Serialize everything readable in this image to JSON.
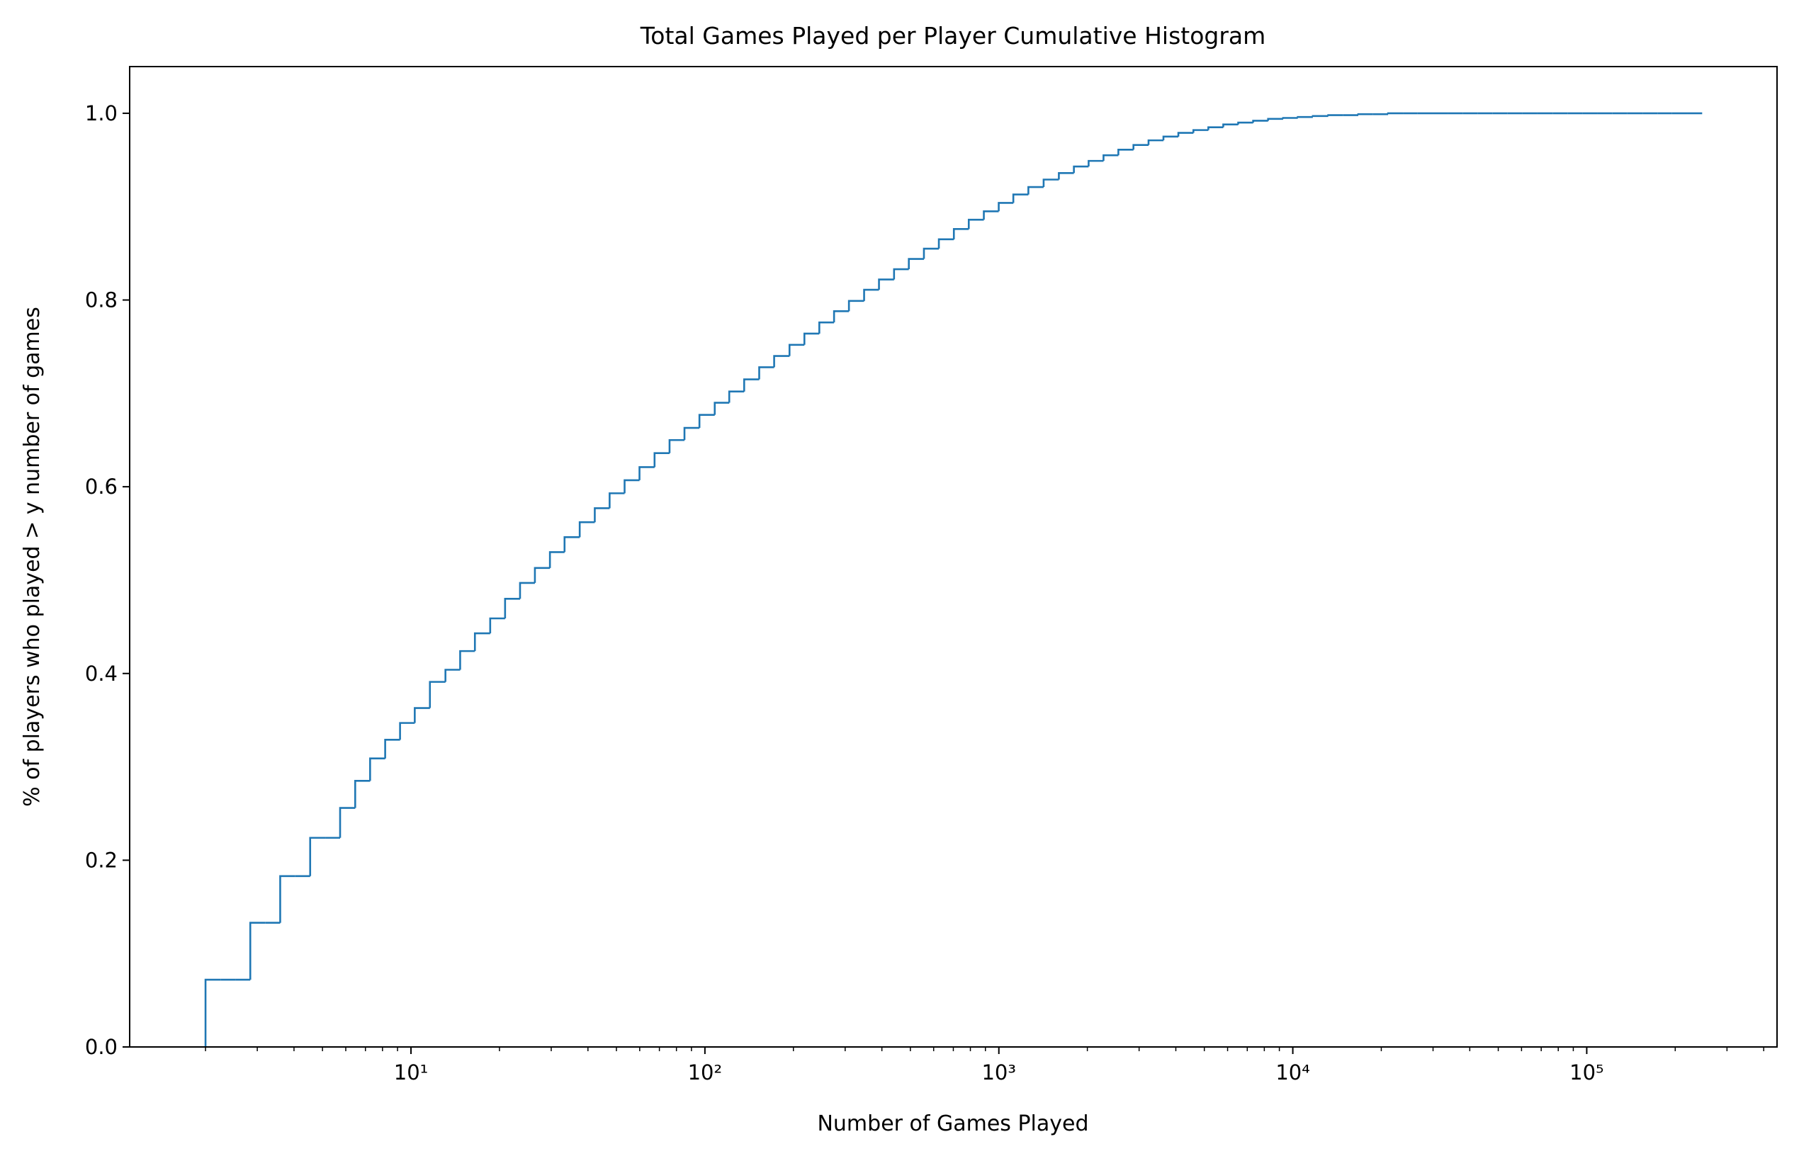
{
  "chart_data": {
    "type": "histogram",
    "title": "Total Games Played per Player Cumulative Histogram",
    "xlabel": "Number of Games Played",
    "ylabel": "% of players who played > y number of games",
    "cumulative": true,
    "histtype": "step",
    "color": "#1f77b4",
    "xscale": "log",
    "bins": [
      2.0,
      2.25,
      2.53,
      2.84,
      3.2,
      3.59,
      4.04,
      4.54,
      5.11,
      5.74,
      6.46,
      7.26,
      8.17,
      9.18,
      10.3,
      11.6,
      13.1,
      14.7,
      16.5,
      18.6,
      20.9,
      23.5,
      26.4,
      29.7,
      33.3,
      37.5,
      42.2,
      47.4,
      53.3,
      59.9,
      67.4,
      75.8,
      85.2,
      95.8,
      108,
      121,
      136,
      153,
      172,
      194,
      218,
      245,
      275,
      309,
      348,
      391,
      440,
      494,
      556,
      625,
      703,
      790,
      889,
      999,
      1120,
      1260,
      1420,
      1600,
      1800,
      2020,
      2270,
      2550,
      2870,
      3230,
      3630,
      4080,
      4590,
      5160,
      5800,
      6520,
      7330,
      8240,
      9270,
      10400,
      11700,
      13200,
      14800,
      16700,
      18700,
      21100,
      23700,
      26600,
      30000,
      33700,
      37800,
      42600,
      47900,
      53800,
      60500,
      68000,
      76500,
      86000,
      96700,
      109000,
      122000,
      137000,
      155000,
      174000,
      195000,
      220000,
      247000
    ],
    "values": [
      0.072,
      0.072,
      0.072,
      0.133,
      0.133,
      0.183,
      0.183,
      0.224,
      0.224,
      0.256,
      0.285,
      0.309,
      0.329,
      0.347,
      0.363,
      0.391,
      0.404,
      0.424,
      0.443,
      0.459,
      0.48,
      0.497,
      0.513,
      0.53,
      0.546,
      0.562,
      0.577,
      0.593,
      0.607,
      0.621,
      0.636,
      0.65,
      0.663,
      0.677,
      0.69,
      0.702,
      0.715,
      0.728,
      0.74,
      0.752,
      0.764,
      0.776,
      0.788,
      0.799,
      0.811,
      0.822,
      0.833,
      0.844,
      0.855,
      0.865,
      0.876,
      0.886,
      0.895,
      0.904,
      0.913,
      0.921,
      0.929,
      0.936,
      0.943,
      0.949,
      0.955,
      0.961,
      0.966,
      0.971,
      0.975,
      0.979,
      0.982,
      0.985,
      0.988,
      0.99,
      0.992,
      0.994,
      0.995,
      0.996,
      0.997,
      0.998,
      0.998,
      0.999,
      0.999,
      1.0,
      1.0,
      1.0,
      1.0,
      1.0,
      1.0,
      1.0,
      1.0,
      1.0,
      1.0,
      1.0,
      1.0,
      1.0,
      1.0,
      1.0,
      1.0,
      1.0,
      1.0,
      1.0,
      1.0,
      1.0,
      1.0
    ],
    "xlim": [
      1.104,
      444000
    ],
    "ylim": [
      0,
      1.05
    ],
    "xticks": [
      {
        "value": 10,
        "label": "10¹"
      },
      {
        "value": 100,
        "label": "10²"
      },
      {
        "value": 1000,
        "label": "10³"
      },
      {
        "value": 10000,
        "label": "10⁴"
      },
      {
        "value": 100000,
        "label": "10⁵"
      }
    ],
    "xminorticks": [
      2,
      3,
      4,
      5,
      6,
      7,
      8,
      9,
      20,
      30,
      40,
      50,
      60,
      70,
      80,
      90,
      200,
      300,
      400,
      500,
      600,
      700,
      800,
      900,
      2000,
      3000,
      4000,
      5000,
      6000,
      7000,
      8000,
      9000,
      20000,
      30000,
      40000,
      50000,
      60000,
      70000,
      80000,
      90000,
      200000,
      300000,
      400000
    ],
    "yticks": [
      {
        "value": 0,
        "label": "0.0"
      },
      0.2,
      0.4,
      0.6,
      0.8,
      {
        "value": 1,
        "label": "1.0"
      }
    ]
  }
}
